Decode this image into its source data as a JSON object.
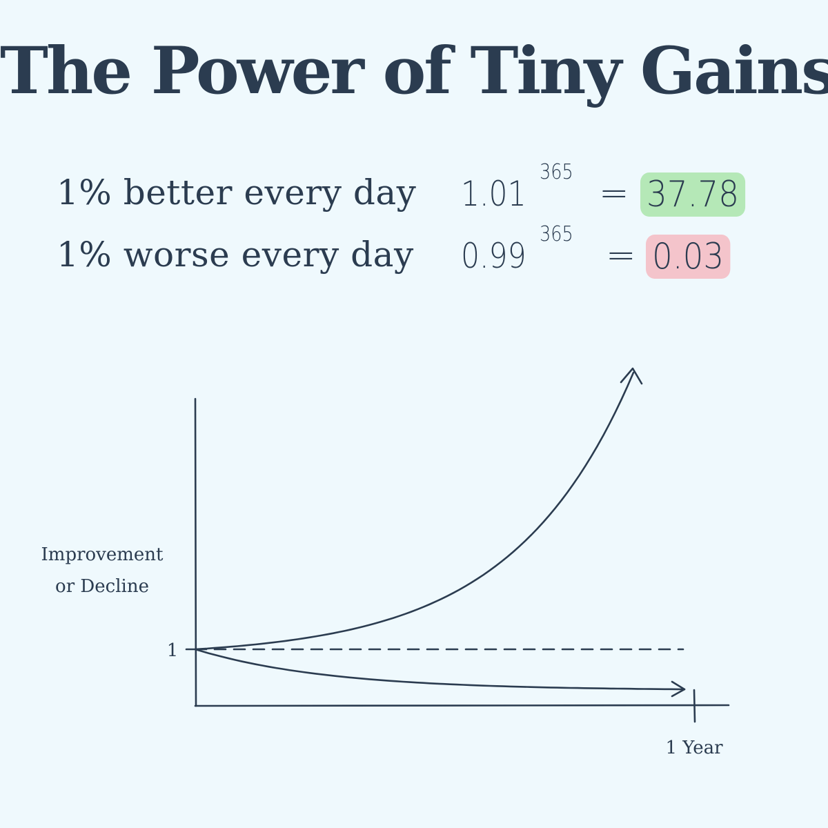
{
  "title": "The Power of Tiny Gains",
  "rows": [
    {
      "label": "1% better every day",
      "base": "1.01",
      "exponent": "365",
      "equals": "=",
      "result": "37.78",
      "highlight": "#b5e8b7"
    },
    {
      "label": "1% worse every day",
      "base": "0.99",
      "exponent": "365",
      "equals": "=",
      "result": "0.03",
      "highlight": "#f4c4cb"
    }
  ],
  "chart_data": {
    "type": "line",
    "ylabel_line1": "Improvement",
    "ylabel_line2": "or Decline",
    "y_tick_label": "1",
    "x_tick_label": "1 Year",
    "x": [
      0,
      365
    ],
    "baseline": 1,
    "series": [
      {
        "growth_rate": 1.01
      },
      {
        "growth_rate": 0.99
      }
    ],
    "colors": {
      "ink": "#2b3c50",
      "background": "#eff9fd"
    }
  }
}
